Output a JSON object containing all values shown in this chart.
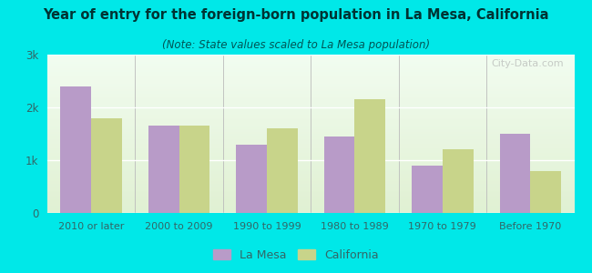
{
  "title": "Year of entry for the foreign-born population in La Mesa, California",
  "subtitle": "(Note: State values scaled to La Mesa population)",
  "categories": [
    "2010 or later",
    "2000 to 2009",
    "1990 to 1999",
    "1980 to 1989",
    "1970 to 1979",
    "Before 1970"
  ],
  "la_mesa_values": [
    2400,
    1650,
    1300,
    1450,
    900,
    1500
  ],
  "california_values": [
    1800,
    1650,
    1600,
    2150,
    1200,
    800
  ],
  "la_mesa_color": "#b89bc8",
  "california_color": "#c8d48a",
  "background_color": "#00e8e8",
  "plot_bg_color": "#e8f5e0",
  "ylim": [
    0,
    3000
  ],
  "yticks": [
    0,
    1000,
    2000,
    3000
  ],
  "ytick_labels": [
    "0",
    "1k",
    "2k",
    "3k"
  ],
  "bar_width": 0.35,
  "legend_labels": [
    "La Mesa",
    "California"
  ],
  "watermark": "City-Data.com",
  "title_color": "#003333",
  "subtitle_color": "#005555",
  "tick_color": "#336666",
  "grid_color": "#ffffff"
}
